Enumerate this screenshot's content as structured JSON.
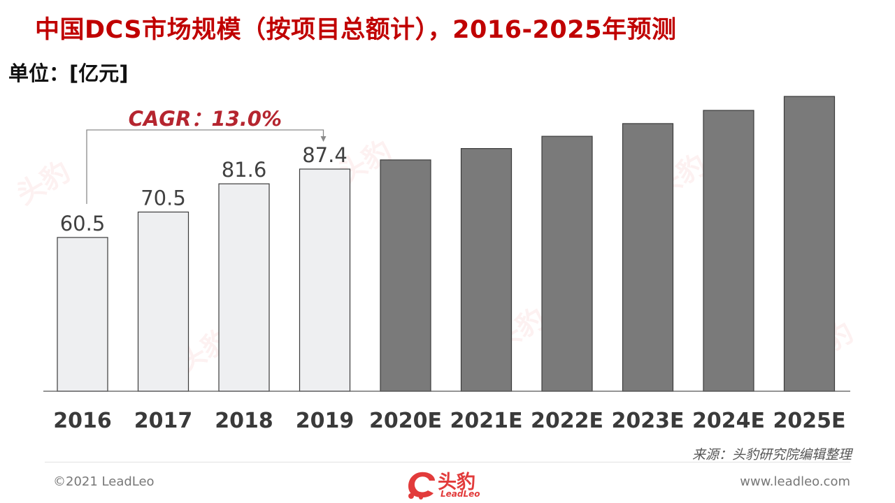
{
  "title": "中国DCS市场规模（按项目总额计），2016-2025年预测",
  "unit_label": "单位：[亿元]",
  "cagr_label": "CAGR：13.0%",
  "source": "来源：头豹研究院编辑整理",
  "footer": {
    "copyright": "©2021 LeadLeo",
    "website": "www.leadleo.com",
    "logo_text": "头豹",
    "logo_sub": "LeadLeo"
  },
  "watermark_text": "头豹",
  "colors": {
    "title": "#c00000",
    "historical_bar": "#eeeff1",
    "forecast_bar": "#7a7a7a",
    "cagr": "#b5252f"
  },
  "chart_data": {
    "type": "bar",
    "categories": [
      "2016",
      "2017",
      "2018",
      "2019",
      "2020E",
      "2021E",
      "2022E",
      "2023E",
      "2024E",
      "2025E"
    ],
    "values": [
      60.5,
      70.5,
      81.6,
      87.4,
      91.0,
      95.5,
      100.3,
      105.3,
      110.5,
      116.0
    ],
    "labels": [
      "60.5",
      "70.5",
      "81.6",
      "87.4",
      "",
      "",
      "",
      "",
      "",
      ""
    ],
    "historical_count": 4,
    "ylim": [
      0,
      116
    ],
    "grid": false,
    "legend": "none",
    "annotation": {
      "text": "CAGR：13.0%",
      "from": "2016",
      "to": "2019"
    }
  }
}
